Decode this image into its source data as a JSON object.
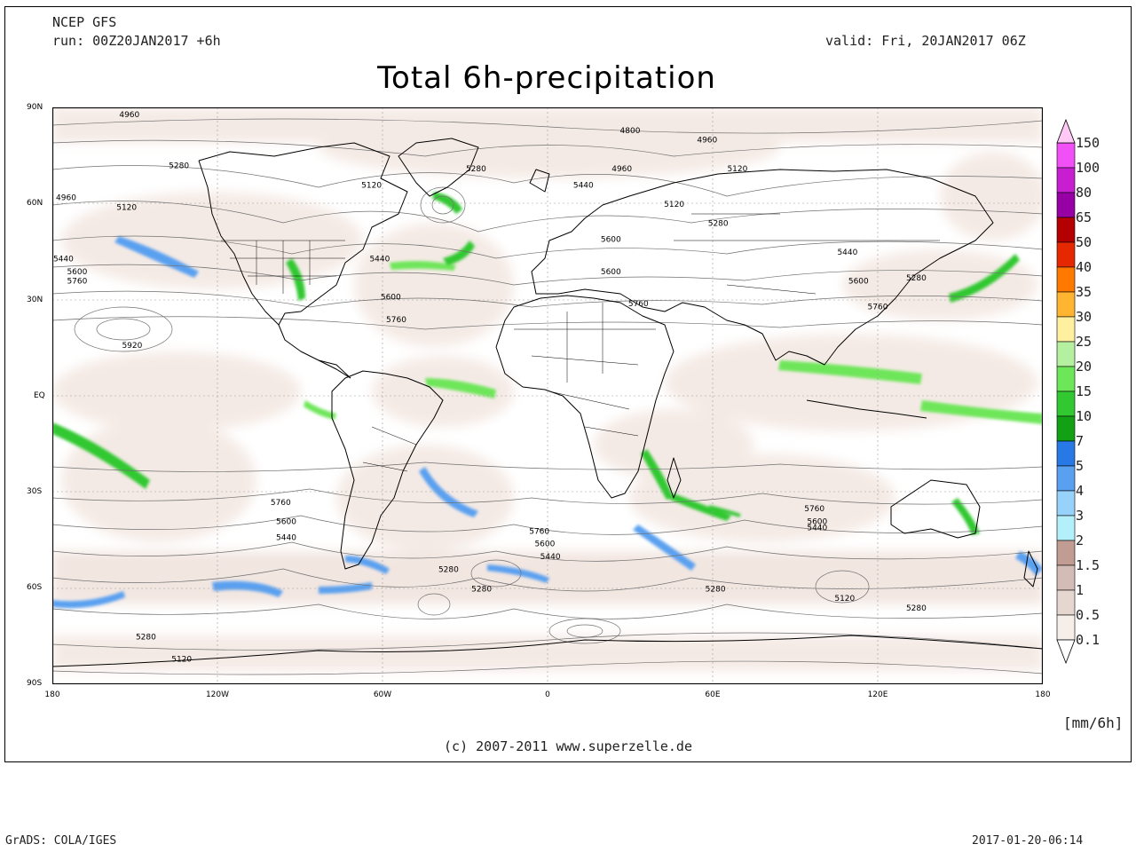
{
  "header": {
    "model": "NCEP GFS",
    "run": "run: 00Z20JAN2017 +6h",
    "valid": "valid: Fri, 20JAN2017 06Z",
    "title": "Total 6h-precipitation"
  },
  "axes": {
    "lat_labels": [
      "90N",
      "60N",
      "30N",
      "EQ",
      "30S",
      "60S",
      "90S"
    ],
    "lon_labels": [
      "180",
      "120W",
      "60W",
      "0",
      "60E",
      "120E",
      "180"
    ]
  },
  "legend": {
    "units": "[mm/6h]",
    "levels": [
      {
        "label": "150",
        "color": "#ffc8f5"
      },
      {
        "label": "100",
        "color": "#f050f5"
      },
      {
        "label": "80",
        "color": "#c81ed2"
      },
      {
        "label": "65",
        "color": "#9600a5"
      },
      {
        "label": "50",
        "color": "#b40000"
      },
      {
        "label": "40",
        "color": "#e62800"
      },
      {
        "label": "35",
        "color": "#ff7800"
      },
      {
        "label": "30",
        "color": "#ffb432"
      },
      {
        "label": "25",
        "color": "#fff0a0"
      },
      {
        "label": "20",
        "color": "#b4f0a0"
      },
      {
        "label": "15",
        "color": "#6ee65a"
      },
      {
        "label": "10",
        "color": "#32c832"
      },
      {
        "label": "7",
        "color": "#14a014"
      },
      {
        "label": "5",
        "color": "#2878e6"
      },
      {
        "label": "4",
        "color": "#5aa0f0"
      },
      {
        "label": "3",
        "color": "#96d2fa"
      },
      {
        "label": "2",
        "color": "#b4f0fa"
      },
      {
        "label": "1.5",
        "color": "#c09c92"
      },
      {
        "label": "1",
        "color": "#d2bcb5"
      },
      {
        "label": "0.5",
        "color": "#e6d6d0"
      },
      {
        "label": "0.1",
        "color": "#f6eee9"
      }
    ]
  },
  "contour_labels": [
    {
      "text": "4960",
      "lon": -152,
      "lat": 87
    },
    {
      "text": "4800",
      "lon": 30,
      "lat": 82
    },
    {
      "text": "4960",
      "lon": 58,
      "lat": 79
    },
    {
      "text": "4960",
      "lon": 27,
      "lat": 70
    },
    {
      "text": "5280",
      "lon": -134,
      "lat": 71
    },
    {
      "text": "5280",
      "lon": -26,
      "lat": 70
    },
    {
      "text": "5120",
      "lon": -64,
      "lat": 65
    },
    {
      "text": "5440",
      "lon": 13,
      "lat": 65
    },
    {
      "text": "5120",
      "lon": 46,
      "lat": 59
    },
    {
      "text": "5120",
      "lon": 69,
      "lat": 70
    },
    {
      "text": "4960",
      "lon": -175,
      "lat": 61
    },
    {
      "text": "5120",
      "lon": -153,
      "lat": 58
    },
    {
      "text": "5280",
      "lon": 62,
      "lat": 53
    },
    {
      "text": "5440",
      "lon": -61,
      "lat": 42
    },
    {
      "text": "5440",
      "lon": -176,
      "lat": 42
    },
    {
      "text": "5600",
      "lon": -171,
      "lat": 38
    },
    {
      "text": "5760",
      "lon": -171,
      "lat": 35
    },
    {
      "text": "5600",
      "lon": 23,
      "lat": 48
    },
    {
      "text": "5600",
      "lon": 23,
      "lat": 38
    },
    {
      "text": "5440",
      "lon": 109,
      "lat": 44
    },
    {
      "text": "5600",
      "lon": 113,
      "lat": 35
    },
    {
      "text": "5280",
      "lon": 134,
      "lat": 36
    },
    {
      "text": "5760",
      "lon": 33,
      "lat": 28
    },
    {
      "text": "5760",
      "lon": 120,
      "lat": 27
    },
    {
      "text": "5600",
      "lon": -57,
      "lat": 30
    },
    {
      "text": "5760",
      "lon": -55,
      "lat": 23
    },
    {
      "text": "5920",
      "lon": -151,
      "lat": 15
    },
    {
      "text": "5760",
      "lon": -97,
      "lat": -34
    },
    {
      "text": "5600",
      "lon": -95,
      "lat": -40
    },
    {
      "text": "5440",
      "lon": -95,
      "lat": -45
    },
    {
      "text": "5760",
      "lon": -3,
      "lat": -43
    },
    {
      "text": "5600",
      "lon": -1,
      "lat": -47
    },
    {
      "text": "5440",
      "lon": 1,
      "lat": -51
    },
    {
      "text": "5760",
      "lon": 97,
      "lat": -36
    },
    {
      "text": "5600",
      "lon": 98,
      "lat": -40
    },
    {
      "text": "5440",
      "lon": 98,
      "lat": -42
    },
    {
      "text": "5280",
      "lon": -36,
      "lat": -55
    },
    {
      "text": "5280",
      "lon": -24,
      "lat": -61
    },
    {
      "text": "5280",
      "lon": 61,
      "lat": -61
    },
    {
      "text": "5120",
      "lon": 108,
      "lat": -64
    },
    {
      "text": "5280",
      "lon": 134,
      "lat": -67
    },
    {
      "text": "5280",
      "lon": -146,
      "lat": -76
    },
    {
      "text": "5120",
      "lon": -133,
      "lat": -83
    }
  ],
  "footer": {
    "copyright": "(c) 2007-2011 www.superzelle.de",
    "software": "GrADS: COLA/IGES",
    "timestamp": "2017-01-20-06:14"
  }
}
